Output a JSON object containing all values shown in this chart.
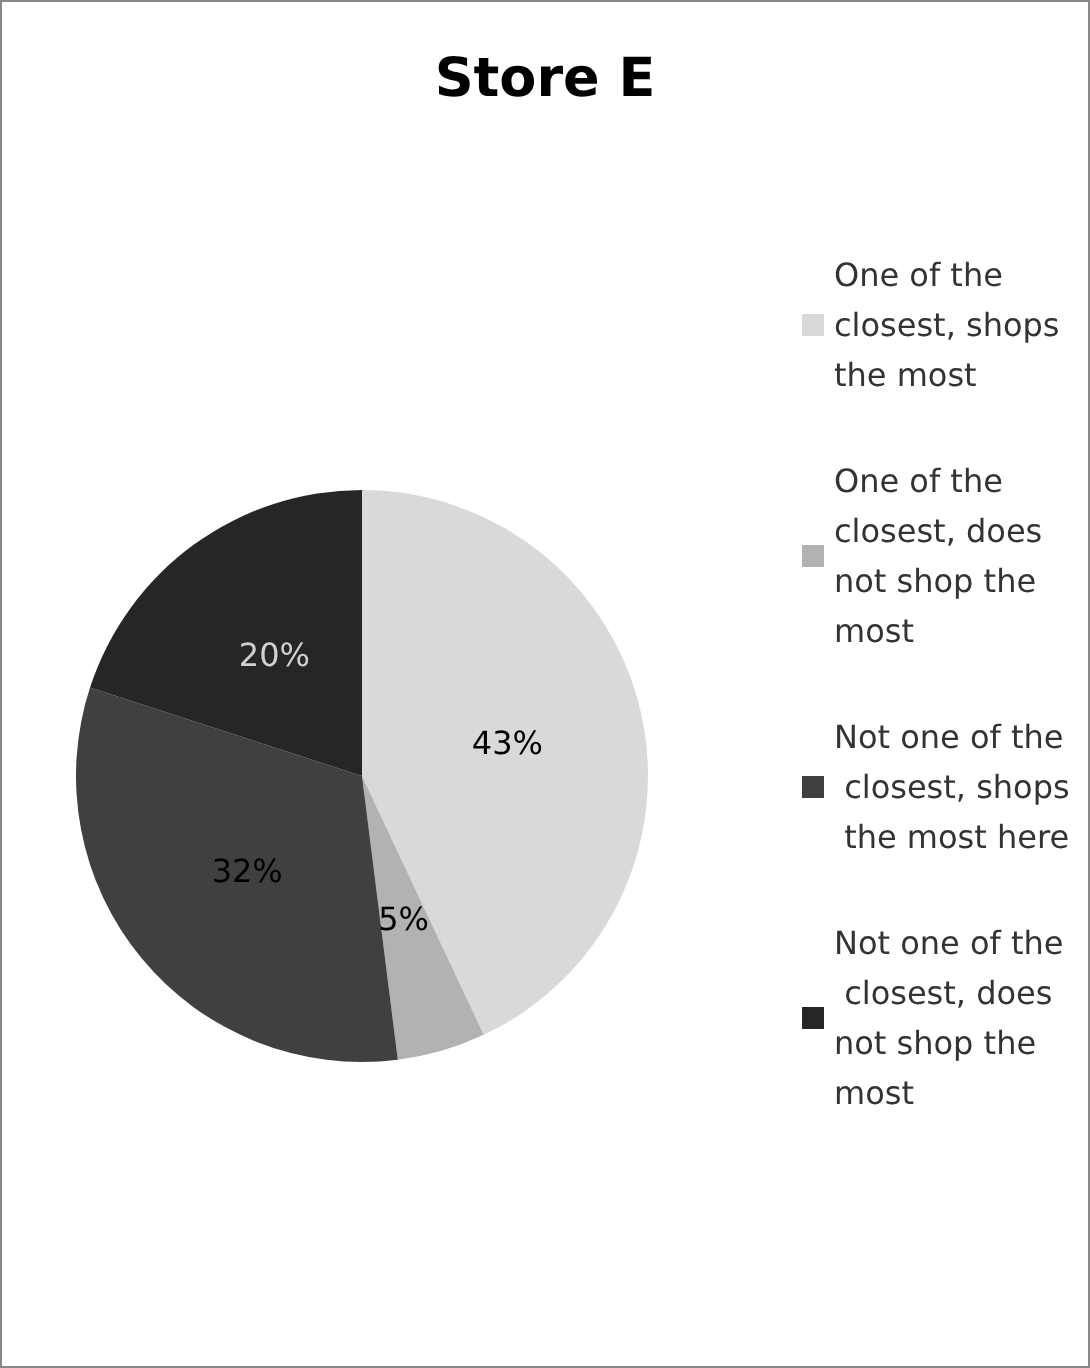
{
  "chart_data": {
    "type": "pie",
    "title": "Store E",
    "categories": [
      "One of the closest, shops the most",
      "One of the closest, does not shop the most",
      "Not one of the closest, shops the most here",
      "Not one of the closest, does not shop the most"
    ],
    "values": [
      43,
      5,
      32,
      20
    ],
    "colors": [
      "#d9d9d9",
      "#b2b2b2",
      "#404040",
      "#262626"
    ],
    "value_labels": [
      "43%",
      "5%",
      "32%",
      "20%"
    ],
    "legend": "right"
  }
}
